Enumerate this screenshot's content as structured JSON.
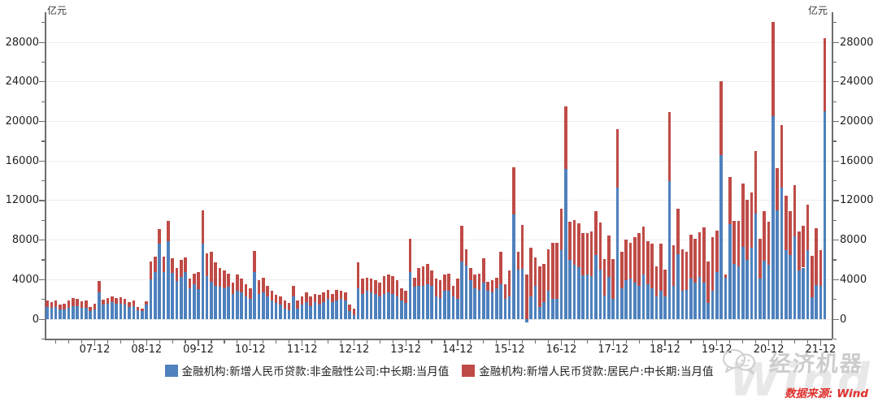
{
  "chart": {
    "unit_label_left": "亿元",
    "unit_label_right": "亿元",
    "source_note": "数据来源: Wind",
    "watermark_brand": "经济机器",
    "watermark_bg": "Wind",
    "colors": {
      "corporate": "#4e81bd",
      "household": "#bf4b47",
      "axis": "#6e6e6e",
      "grid": "#ededed",
      "source_text": "#e0312e"
    }
  },
  "chart_data": {
    "type": "bar",
    "stacked": true,
    "title": "",
    "ylabel": "亿元",
    "ylim": [
      -2000,
      31000
    ],
    "y_ticks": [
      0,
      4000,
      8000,
      12000,
      16000,
      20000,
      24000,
      28000
    ],
    "y_minor_step": 2000,
    "grid": true,
    "legend_position": "bottom",
    "x_tick_labels": [
      "07-12",
      "08-12",
      "09-12",
      "10-12",
      "11-12",
      "12-12",
      "13-12",
      "14-12",
      "15-12",
      "16-12",
      "17-12",
      "18-12",
      "19-12",
      "20-12",
      "21-12"
    ],
    "x": [
      "2007-01",
      "2007-02",
      "2007-03",
      "2007-04",
      "2007-05",
      "2007-06",
      "2007-07",
      "2007-08",
      "2007-09",
      "2007-10",
      "2007-11",
      "2007-12",
      "2008-01",
      "2008-02",
      "2008-03",
      "2008-04",
      "2008-05",
      "2008-06",
      "2008-07",
      "2008-08",
      "2008-09",
      "2008-10",
      "2008-11",
      "2008-12",
      "2009-01",
      "2009-02",
      "2009-03",
      "2009-04",
      "2009-05",
      "2009-06",
      "2009-07",
      "2009-08",
      "2009-09",
      "2009-10",
      "2009-11",
      "2009-12",
      "2010-01",
      "2010-02",
      "2010-03",
      "2010-04",
      "2010-05",
      "2010-06",
      "2010-07",
      "2010-08",
      "2010-09",
      "2010-10",
      "2010-11",
      "2010-12",
      "2011-01",
      "2011-02",
      "2011-03",
      "2011-04",
      "2011-05",
      "2011-06",
      "2011-07",
      "2011-08",
      "2011-09",
      "2011-10",
      "2011-11",
      "2011-12",
      "2012-01",
      "2012-02",
      "2012-03",
      "2012-04",
      "2012-05",
      "2012-06",
      "2012-07",
      "2012-08",
      "2012-09",
      "2012-10",
      "2012-11",
      "2012-12",
      "2013-01",
      "2013-02",
      "2013-03",
      "2013-04",
      "2013-05",
      "2013-06",
      "2013-07",
      "2013-08",
      "2013-09",
      "2013-10",
      "2013-11",
      "2013-12",
      "2014-01",
      "2014-02",
      "2014-03",
      "2014-04",
      "2014-05",
      "2014-06",
      "2014-07",
      "2014-08",
      "2014-09",
      "2014-10",
      "2014-11",
      "2014-12",
      "2015-01",
      "2015-02",
      "2015-03",
      "2015-04",
      "2015-05",
      "2015-06",
      "2015-07",
      "2015-08",
      "2015-09",
      "2015-10",
      "2015-11",
      "2015-12",
      "2016-01",
      "2016-02",
      "2016-03",
      "2016-04",
      "2016-05",
      "2016-06",
      "2016-07",
      "2016-08",
      "2016-09",
      "2016-10",
      "2016-11",
      "2016-12",
      "2017-01",
      "2017-02",
      "2017-03",
      "2017-04",
      "2017-05",
      "2017-06",
      "2017-07",
      "2017-08",
      "2017-09",
      "2017-10",
      "2017-11",
      "2017-12",
      "2018-01",
      "2018-02",
      "2018-03",
      "2018-04",
      "2018-05",
      "2018-06",
      "2018-07",
      "2018-08",
      "2018-09",
      "2018-10",
      "2018-11",
      "2018-12",
      "2019-01",
      "2019-02",
      "2019-03",
      "2019-04",
      "2019-05",
      "2019-06",
      "2019-07",
      "2019-08",
      "2019-09",
      "2019-10",
      "2019-11",
      "2019-12",
      "2020-01",
      "2020-02",
      "2020-03",
      "2020-04",
      "2020-05",
      "2020-06",
      "2020-07",
      "2020-08",
      "2020-09",
      "2020-10",
      "2020-11",
      "2020-12",
      "2021-01",
      "2021-02",
      "2021-03",
      "2021-04",
      "2021-05",
      "2021-06",
      "2021-07",
      "2021-08",
      "2021-09",
      "2021-10",
      "2021-11",
      "2021-12",
      "2022-01"
    ],
    "series": [
      {
        "name": "金融机构:新增人民币贷款:非金融性公司:中长期:当月值",
        "color": "#4e81bd",
        "values": [
          1200,
          1150,
          1200,
          980,
          1000,
          1150,
          1310,
          1280,
          1130,
          1150,
          820,
          1000,
          2680,
          1500,
          1600,
          1700,
          1550,
          1600,
          1500,
          1250,
          1350,
          900,
          850,
          1500,
          4000,
          4750,
          7620,
          4800,
          7900,
          4700,
          3900,
          4300,
          4760,
          3110,
          3520,
          3000,
          7620,
          4340,
          3800,
          3390,
          3250,
          3110,
          3250,
          2570,
          2840,
          2700,
          2300,
          2020,
          4750,
          2570,
          2700,
          2300,
          1890,
          1610,
          1480,
          1070,
          930,
          2300,
          1070,
          1480,
          1750,
          1340,
          1750,
          1480,
          1750,
          2020,
          1750,
          1890,
          2020,
          1890,
          790,
          380,
          3110,
          2570,
          2840,
          2700,
          2570,
          2300,
          2570,
          2700,
          2570,
          2300,
          1890,
          1610,
          4750,
          3250,
          3390,
          3390,
          3520,
          3390,
          2300,
          2160,
          2840,
          2840,
          2300,
          2020,
          5850,
          5440,
          3930,
          3110,
          2980,
          3660,
          2840,
          2700,
          3110,
          3520,
          2020,
          2300,
          10600,
          5022,
          5111,
          -350,
          2300,
          3390,
          1200,
          1750,
          2840,
          2020,
          2018,
          6954,
          15220,
          6018,
          5482,
          5226,
          4396,
          4500,
          4332,
          6469,
          5029,
          2366,
          4275,
          2059,
          13300,
          3110,
          3930,
          4070,
          3660,
          3390,
          4480,
          3520,
          3110,
          2300,
          2840,
          2300,
          14000,
          3390,
          6573,
          2840,
          2980,
          4070,
          3678,
          4285,
          3660,
          1610,
          2840,
          4750,
          16600,
          4157,
          9643,
          5547,
          5305,
          7348,
          5968,
          7252,
          10680,
          4113,
          5887,
          5500,
          20500,
          11000,
          13300,
          7000,
          6528,
          8367,
          4937,
          5215,
          6948,
          2190,
          3417,
          3393,
          21000
        ]
      },
      {
        "name": "金融机构:新增人民币贷款:居民户:中长期:当月值",
        "color": "#bf4b47",
        "values": [
          690,
          600,
          690,
          500,
          550,
          740,
          790,
          770,
          670,
          740,
          440,
          550,
          1190,
          500,
          500,
          620,
          550,
          580,
          550,
          450,
          510,
          310,
          250,
          330,
          1800,
          1550,
          1510,
          1500,
          2050,
          1500,
          1300,
          1700,
          1500,
          960,
          1100,
          1750,
          3420,
          2330,
          3000,
          2320,
          1910,
          1780,
          1370,
          1090,
          1640,
          1370,
          1220,
          1090,
          2190,
          1360,
          1510,
          1090,
          950,
          820,
          820,
          820,
          680,
          1090,
          820,
          820,
          950,
          960,
          820,
          950,
          950,
          960,
          820,
          1090,
          820,
          810,
          690,
          690,
          2600,
          1500,
          1370,
          1370,
          1360,
          1360,
          1770,
          1780,
          1770,
          1630,
          1220,
          1230,
          3420,
          960,
          1770,
          1910,
          2050,
          1500,
          1770,
          1770,
          1640,
          1780,
          1090,
          2050,
          3600,
          1640,
          1230,
          1370,
          1640,
          2460,
          960,
          1230,
          1100,
          3280,
          1500,
          2590,
          4800,
          1820,
          4397,
          4500,
          4910,
          2870,
          4100,
          3820,
          4240,
          5740,
          5692,
          4217,
          6340,
          3804,
          4503,
          4441,
          4326,
          4200,
          4544,
          4470,
          4786,
          3710,
          4178,
          4033,
          5900,
          3700,
          4100,
          3690,
          4650,
          5330,
          4920,
          4380,
          4510,
          3000,
          4780,
          2730,
          6969,
          4100,
          4605,
          4240,
          3830,
          4510,
          4417,
          4540,
          5600,
          4240,
          5470,
          4240,
          7491,
          371,
          4738,
          4389,
          4662,
          6349,
          6067,
          5571,
          6362,
          4059,
          5049,
          4392,
          9600,
          4270,
          6350,
          5500,
          4426,
          5156,
          3974,
          4259,
          4667,
          4221,
          5821,
          3558,
          7424
        ]
      }
    ]
  }
}
